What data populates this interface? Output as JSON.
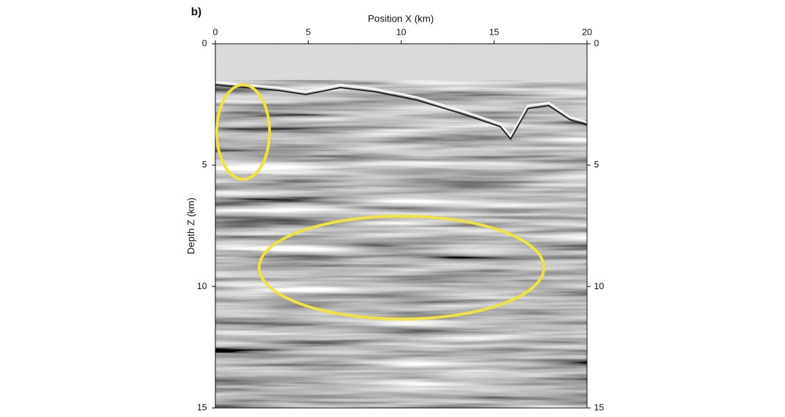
{
  "chart_data": {
    "type": "image",
    "panel_label": "b)",
    "x_label": "Position X (km)",
    "y_label": "Depth Z (km)",
    "xlim": [
      0,
      20
    ],
    "xticks": [
      0,
      5,
      10,
      15,
      20
    ],
    "ylim": [
      0,
      15
    ],
    "yticks": [
      0,
      5,
      10,
      15
    ]
  }
}
